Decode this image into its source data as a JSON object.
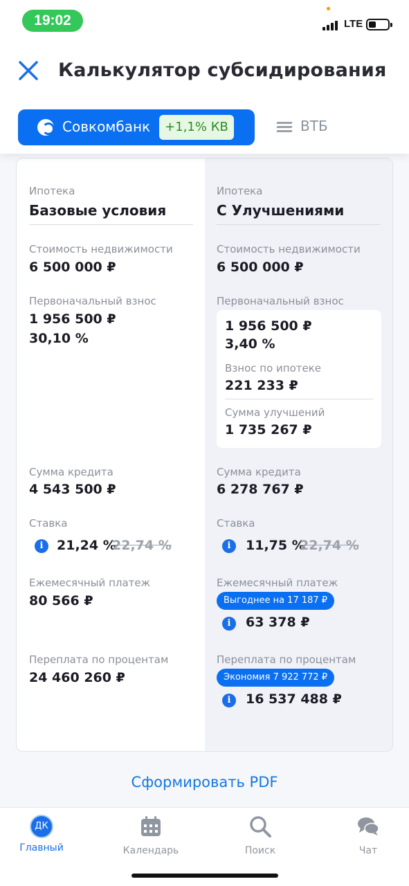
{
  "status_bar": {
    "time": "19:02",
    "network": "LTE"
  },
  "header": {
    "title": "Калькулятор субсидирования"
  },
  "bank_tabs": {
    "active": {
      "label": "Совкомбанк",
      "badge": "+1,1% КВ"
    },
    "other": {
      "label": "ВТБ"
    }
  },
  "compare": {
    "base": {
      "mortgage_label": "Ипотека",
      "mortgage_title": "Базовые условия",
      "cost_label": "Стоимость недвижимости",
      "cost_value": "6 500 000 ₽",
      "down_label": "Первоначальный взнос",
      "down_value": "1 956 500 ₽",
      "down_percent": "30,10 %",
      "credit_label": "Сумма кредита",
      "credit_value": "4 543 500 ₽",
      "rate_label": "Ставка",
      "rate_value": "21,24 %",
      "rate_old": "22,74 %",
      "monthly_label": "Ежемесячный платеж",
      "monthly_value": "80 566 ₽",
      "overpay_label": "Переплата по процентам",
      "overpay_value": "24 460 260 ₽"
    },
    "improved": {
      "mortgage_label": "Ипотека",
      "mortgage_title": "С Улучшениями",
      "cost_label": "Стоимость недвижимости",
      "cost_value": "6 500 000 ₽",
      "down_label": "Первоначальный взнос",
      "down_value": "1 956 500 ₽",
      "down_percent": "3,40 %",
      "mortgage_contrib_label": "Взнос по ипотеке",
      "mortgage_contrib_value": "221 233 ₽",
      "improvements_label": "Сумма улучшений",
      "improvements_value": "1 735 267 ₽",
      "credit_label": "Сумма кредита",
      "credit_value": "6 278 767 ₽",
      "rate_label": "Ставка",
      "rate_value": "11,75 %",
      "rate_old": "22,74 %",
      "monthly_label": "Ежемесячный платеж",
      "monthly_badge": "Выгоднее на 17 187 ₽",
      "monthly_value": "63 378 ₽",
      "overpay_label": "Переплата по процентам",
      "overpay_badge": "Экономия 7 922 772 ₽",
      "overpay_value": "16 537 488 ₽"
    }
  },
  "pdf_button": "Сформировать PDF",
  "bottom_nav": {
    "home": {
      "avatar": "ДК",
      "label": "Главный"
    },
    "calendar": {
      "label": "Календарь"
    },
    "search": {
      "label": "Поиск"
    },
    "chat": {
      "label": "Чат"
    }
  },
  "colors": {
    "accent": "#0a6ff0",
    "badge_green_bg": "#e6f8e3",
    "badge_green_text": "#2e8b25",
    "status_green": "#34c759"
  }
}
